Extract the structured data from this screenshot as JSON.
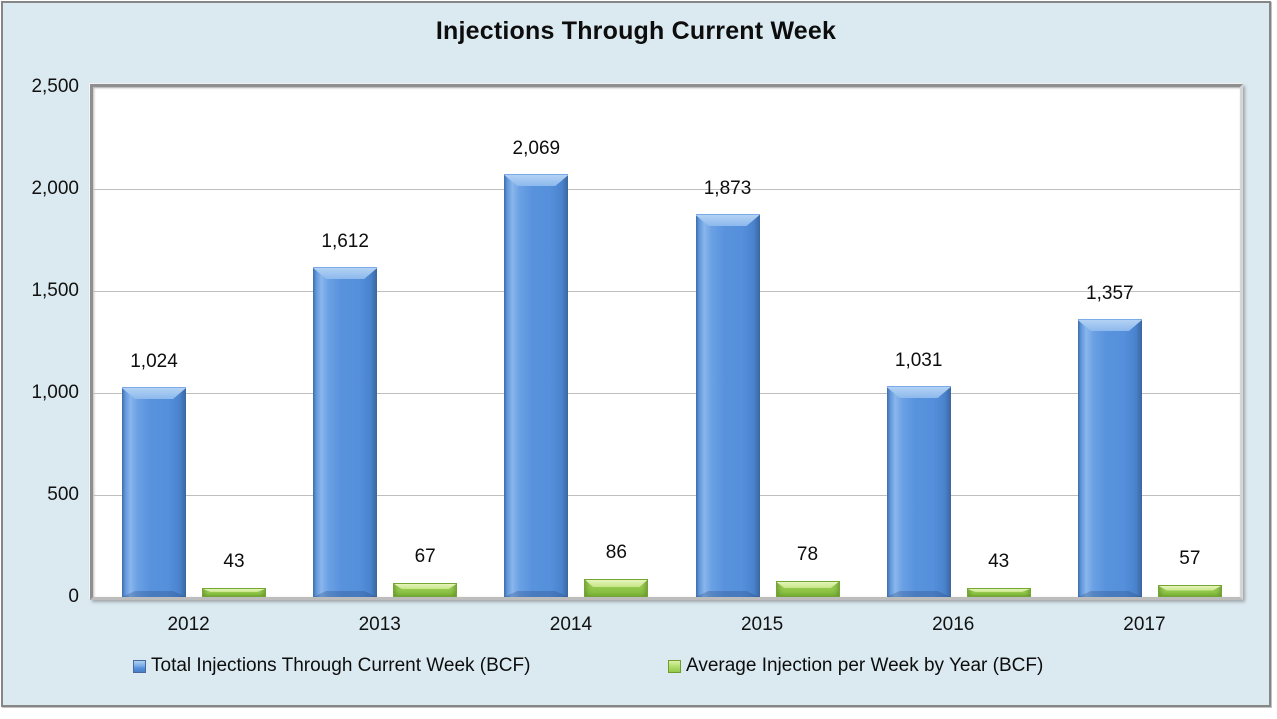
{
  "title": "Injections Through Current Week",
  "colors": {
    "canvas_background": "#DBEAF1",
    "frame_border": "#868686",
    "plot_background": "#FFFFFF",
    "gridline": "#BFBFBF",
    "series_blue": "#5590DC",
    "series_green": "#94C94A",
    "text": "#0D0D0D"
  },
  "chart_data": {
    "type": "bar",
    "title": "Injections Through Current Week",
    "categories": [
      "2012",
      "2013",
      "2014",
      "2015",
      "2016",
      "2017"
    ],
    "series": [
      {
        "name": "Total Injections Through Current Week (BCF)",
        "color": "#5590DC",
        "values": [
          1024,
          1612,
          2069,
          1873,
          1031,
          1357
        ],
        "value_labels": [
          "1,024",
          "1,612",
          "2,069",
          "1,873",
          "1,031",
          "1,357"
        ]
      },
      {
        "name": "Average Injection per Week by Year (BCF)",
        "color": "#94C94A",
        "values": [
          43,
          67,
          86,
          78,
          43,
          57
        ],
        "value_labels": [
          "43",
          "67",
          "86",
          "78",
          "43",
          "57"
        ]
      }
    ],
    "xlabel": "",
    "ylabel": "",
    "ylim": [
      0,
      2500
    ],
    "yticks": [
      0,
      500,
      1000,
      1500,
      2000,
      2500
    ],
    "ytick_labels": [
      "0",
      "500",
      "1,000",
      "1,500",
      "2,000",
      "2,500"
    ],
    "grid": true,
    "data_labels": true,
    "legend_position": "bottom"
  }
}
